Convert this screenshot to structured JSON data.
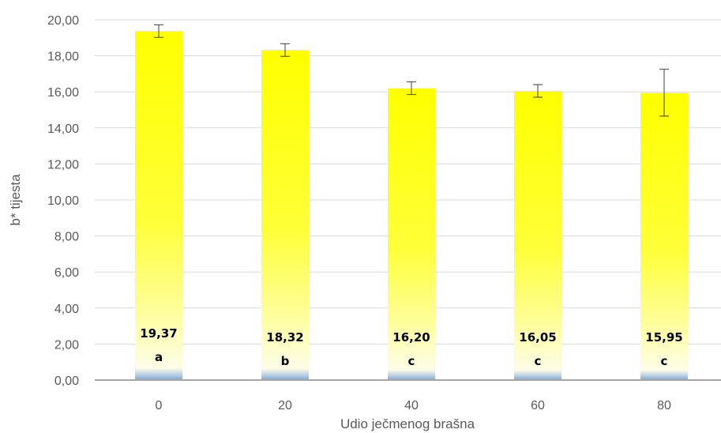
{
  "chart_data": {
    "type": "bar",
    "title": "",
    "xlabel": "Udio ječmenog brašna",
    "ylabel": "b* tijesta",
    "categories": [
      "0",
      "20",
      "40",
      "60",
      "80"
    ],
    "values": [
      19.37,
      18.32,
      16.2,
      16.05,
      15.95
    ],
    "value_labels": [
      "19,37",
      "18,32",
      "16,20",
      "16,05",
      "15,95"
    ],
    "letters": [
      "a",
      "b",
      "c",
      "c",
      "c"
    ],
    "error": [
      0.35,
      0.35,
      0.35,
      0.35,
      1.3
    ],
    "ylim": [
      0,
      20
    ],
    "yticks": [
      0,
      2,
      4,
      6,
      8,
      10,
      12,
      14,
      16,
      18,
      20
    ],
    "ytick_labels": [
      "0,00",
      "2,00",
      "4,00",
      "6,00",
      "8,00",
      "10,00",
      "12,00",
      "14,00",
      "16,00",
      "18,00",
      "20,00"
    ],
    "grid": true,
    "legend": "none",
    "colors": {
      "bar_top": "#ffff00",
      "bar_mid": "#ffff80",
      "bar_low": "#fefee0",
      "bar_base": "#8fb3d9",
      "grid": "#d9d9d9",
      "axis": "#a6a6a6"
    }
  }
}
